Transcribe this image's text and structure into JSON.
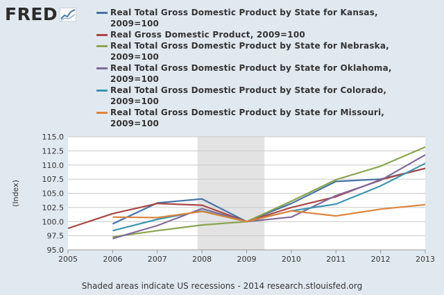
{
  "logo": {
    "text": "FRED"
  },
  "footer": {
    "note": "Shaded areas indicate US recessions - 2014 research.stlouisfed.org"
  },
  "chart_data": {
    "type": "line",
    "title": "",
    "xlabel": "",
    "ylabel": "(Index)",
    "xlim": [
      2005,
      2013
    ],
    "ylim": [
      95.0,
      115.0
    ],
    "x_ticks": [
      2005,
      2006,
      2007,
      2008,
      2009,
      2010,
      2011,
      2012,
      2013
    ],
    "y_ticks": [
      "95.0",
      "97.5",
      "100.0",
      "102.5",
      "105.0",
      "107.5",
      "110.0",
      "112.5",
      "115.0"
    ],
    "grid": "horizontal",
    "legend": "top",
    "recession": [
      2007.9,
      2009.4
    ],
    "series": [
      {
        "name": "Real Total Gross Domestic Product by State for Kansas,\n2009=100",
        "color": "#4572a7",
        "x": [
          2006,
          2007,
          2008,
          2009,
          2010,
          2011,
          2012,
          2013
        ],
        "y": [
          99.6,
          103.3,
          104.0,
          100.0,
          103.2,
          107.1,
          107.5,
          109.4
        ]
      },
      {
        "name": "Real Gross Domestic Product, 2009=100",
        "color": "#aa4643",
        "x": [
          2005,
          2006,
          2007,
          2008,
          2009,
          2010,
          2011,
          2012,
          2013
        ],
        "y": [
          98.8,
          101.4,
          103.2,
          102.9,
          100.0,
          102.5,
          104.4,
          107.4,
          109.4
        ]
      },
      {
        "name": "Real Total Gross Domestic Product by State for Nebraska,\n2009=100",
        "color": "#89a54e",
        "x": [
          2006,
          2007,
          2008,
          2009,
          2010,
          2011,
          2012,
          2013
        ],
        "y": [
          97.3,
          98.4,
          99.4,
          100.0,
          103.6,
          107.4,
          109.8,
          113.2
        ]
      },
      {
        "name": "Real Total Gross Domestic Product by State for Oklahoma,\n2009=100",
        "color": "#80699b",
        "x": [
          2006,
          2007,
          2008,
          2009,
          2010,
          2011,
          2012,
          2013
        ],
        "y": [
          97.0,
          99.3,
          102.3,
          100.0,
          100.8,
          104.6,
          107.3,
          111.8
        ]
      },
      {
        "name": "Real Total Gross Domestic Product by State for Colorado,\n2009=100",
        "color": "#3d96ae",
        "x": [
          2006,
          2007,
          2008,
          2009,
          2010,
          2011,
          2012,
          2013
        ],
        "y": [
          98.4,
          100.4,
          101.9,
          100.0,
          101.9,
          103.1,
          106.3,
          110.3
        ]
      },
      {
        "name": "Real Total Gross Domestic Product by State for Missouri,\n2009=100",
        "color": "#db843d",
        "x": [
          2006,
          2007,
          2008,
          2009,
          2010,
          2011,
          2012,
          2013
        ],
        "y": [
          100.8,
          100.7,
          101.8,
          100.0,
          101.9,
          101.0,
          102.2,
          103.0
        ]
      }
    ]
  }
}
